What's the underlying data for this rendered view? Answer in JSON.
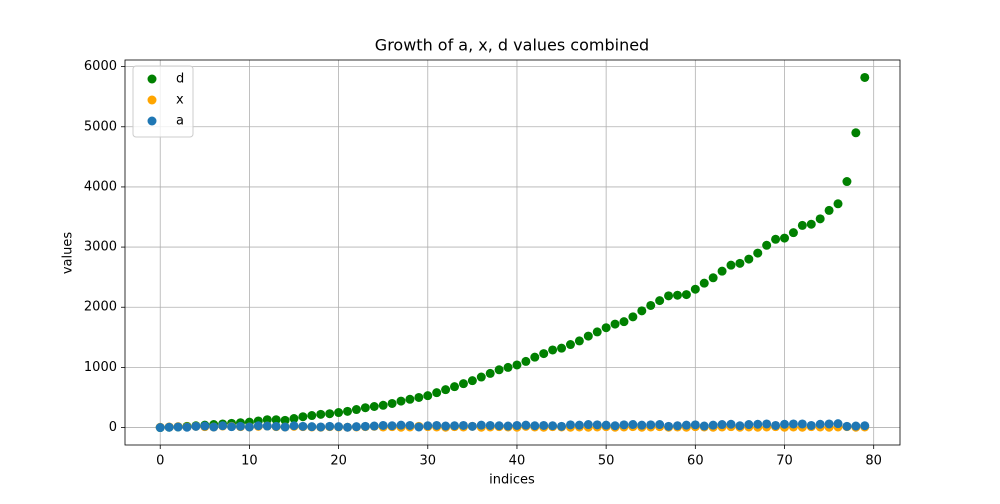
{
  "chart_data": {
    "type": "scatter",
    "title": "Growth of a, x, d values combined",
    "x_label": "indices",
    "y_label": "values",
    "x": [
      0,
      1,
      2,
      3,
      4,
      5,
      6,
      7,
      8,
      9,
      10,
      11,
      12,
      13,
      14,
      15,
      16,
      17,
      18,
      19,
      20,
      21,
      22,
      23,
      24,
      25,
      26,
      27,
      28,
      29,
      30,
      31,
      32,
      33,
      34,
      35,
      36,
      37,
      38,
      39,
      40,
      41,
      42,
      43,
      44,
      45,
      46,
      47,
      48,
      49,
      50,
      51,
      52,
      53,
      54,
      55,
      56,
      57,
      58,
      59,
      60,
      61,
      62,
      63,
      64,
      65,
      66,
      67,
      68,
      69,
      70,
      71,
      72,
      73,
      74,
      75,
      76,
      77,
      78,
      79
    ],
    "series": [
      {
        "name": "d",
        "color": "green",
        "values": [
          0,
          5,
          10,
          20,
          30,
          40,
          50,
          60,
          70,
          80,
          90,
          110,
          130,
          130,
          120,
          150,
          180,
          200,
          220,
          230,
          250,
          270,
          300,
          330,
          350,
          370,
          400,
          440,
          470,
          500,
          530,
          580,
          630,
          680,
          730,
          780,
          840,
          900,
          960,
          1000,
          1040,
          1100,
          1170,
          1230,
          1290,
          1320,
          1380,
          1440,
          1520,
          1590,
          1660,
          1720,
          1760,
          1840,
          1940,
          2030,
          2110,
          2190,
          2200,
          2210,
          2300,
          2400,
          2490,
          2600,
          2700,
          2730,
          2800,
          2900,
          3030,
          3130,
          3150,
          3240,
          3360,
          3380,
          3470,
          3610,
          3720,
          4090,
          4900,
          5820
        ]
      },
      {
        "name": "x",
        "color": "orange",
        "values": [
          5,
          10,
          15,
          10,
          20,
          15,
          10,
          25,
          20,
          15,
          10,
          20,
          25,
          15,
          10,
          20,
          15,
          10,
          5,
          15,
          10,
          5,
          10,
          15,
          20,
          10,
          15,
          5,
          10,
          20,
          15,
          10,
          5,
          15,
          10,
          20,
          5,
          10,
          15,
          10,
          5,
          20,
          10,
          5,
          15,
          10,
          5,
          10,
          5,
          10,
          15,
          5,
          10,
          15,
          5,
          10,
          15,
          5,
          10,
          5,
          15,
          10,
          5,
          10,
          15,
          5,
          10,
          5,
          10,
          15,
          5,
          10,
          5,
          15,
          10,
          5,
          10,
          15,
          5,
          10
        ]
      },
      {
        "name": "a",
        "color": "#1f77b4",
        "values": [
          0,
          5,
          10,
          5,
          20,
          25,
          10,
          30,
          15,
          20,
          10,
          30,
          25,
          20,
          10,
          30,
          20,
          15,
          10,
          20,
          15,
          5,
          15,
          20,
          25,
          35,
          30,
          40,
          35,
          10,
          30,
          35,
          25,
          30,
          35,
          20,
          40,
          35,
          30,
          25,
          35,
          40,
          30,
          35,
          30,
          20,
          45,
          40,
          50,
          45,
          40,
          30,
          45,
          50,
          40,
          45,
          50,
          20,
          30,
          40,
          45,
          25,
          40,
          50,
          55,
          30,
          50,
          55,
          60,
          35,
          55,
          60,
          60,
          35,
          55,
          60,
          65,
          20,
          25,
          30
        ]
      }
    ],
    "xlim": [
      -3.95,
      82.95
    ],
    "ylim": [
      -290,
      6110
    ],
    "xticks": [
      0,
      10,
      20,
      30,
      40,
      50,
      60,
      70,
      80
    ],
    "yticks": [
      0,
      1000,
      2000,
      3000,
      4000,
      5000,
      6000
    ],
    "grid": true,
    "legend": "upper left"
  }
}
